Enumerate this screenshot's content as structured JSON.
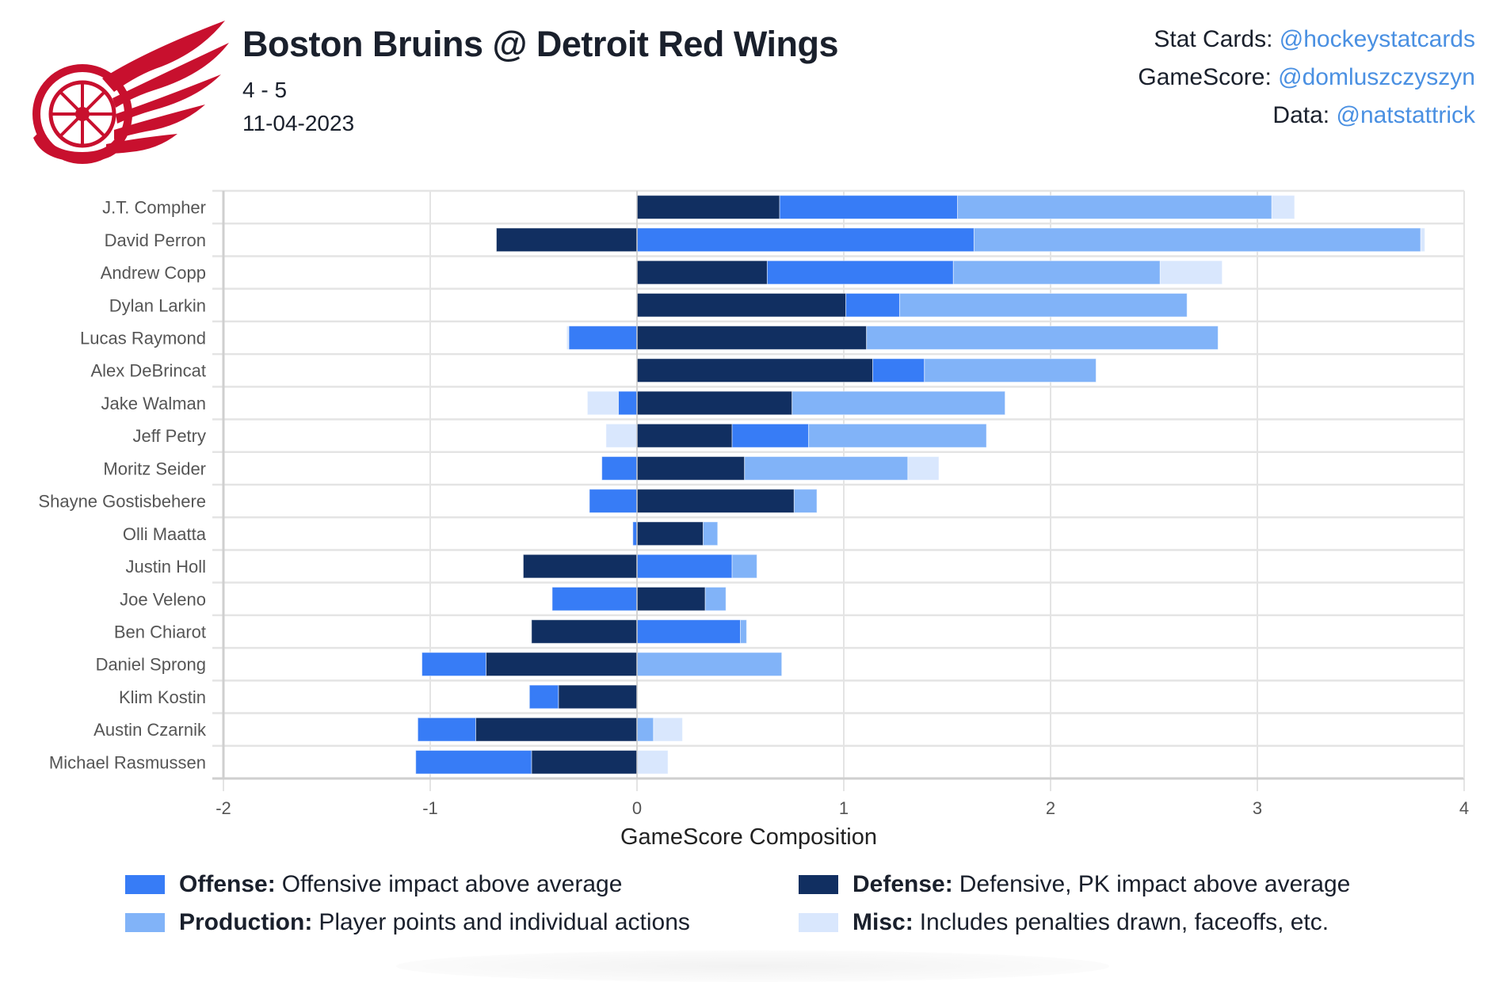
{
  "header": {
    "title": "Boston Bruins @ Detroit Red Wings",
    "score": "4 - 5",
    "date": "11-04-2023",
    "logo_icon": "red-wings-winged-wheel-logo",
    "logo_color": "#c8102e"
  },
  "credits": [
    {
      "label": "Stat Cards:",
      "handle": "@hockeystatcards"
    },
    {
      "label": "GameScore:",
      "handle": "@domluszczyszyn"
    },
    {
      "label": "Data:",
      "handle": "@natstattrick"
    }
  ],
  "legend": [
    {
      "key": "offense",
      "name": "Offense:",
      "desc": "Offensive impact above average",
      "color": "#377cf6"
    },
    {
      "key": "defense",
      "name": "Defense:",
      "desc": "Defensive, PK impact above average",
      "color": "#112f61"
    },
    {
      "key": "production",
      "name": "Production:",
      "desc": "Player points and individual actions",
      "color": "#81b3f8"
    },
    {
      "key": "misc",
      "name": "Misc:",
      "desc": "Includes penalties drawn, faceoffs, etc.",
      "color": "#d9e7fd"
    }
  ],
  "chart_data": {
    "type": "bar",
    "orientation": "horizontal",
    "stacked": true,
    "title": "",
    "xlabel": "GameScore Composition",
    "ylabel": "",
    "xlim": [
      -2,
      4
    ],
    "xticks": [
      "-2",
      "-1",
      "0",
      "1",
      "2",
      "3",
      "4"
    ],
    "grid": true,
    "legend_position": "bottom",
    "categories": [
      "J.T. Compher",
      "David Perron",
      "Andrew Copp",
      "Dylan Larkin",
      "Lucas Raymond",
      "Alex DeBrincat",
      "Jake Walman",
      "Jeff Petry",
      "Moritz Seider",
      "Shayne Gostisbehere",
      "Olli Maatta",
      "Justin Holl",
      "Joe Veleno",
      "Ben Chiarot",
      "Daniel Sprong",
      "Klim Kostin",
      "Austin Czarnik",
      "Michael Rasmussen"
    ],
    "series": [
      {
        "name": "Defense",
        "color": "#112f61",
        "values": [
          0.69,
          -0.68,
          0.63,
          1.01,
          1.11,
          1.14,
          0.75,
          0.46,
          0.52,
          0.76,
          0.32,
          -0.55,
          0.33,
          -0.51,
          -0.73,
          -0.38,
          -0.78,
          -0.51
        ]
      },
      {
        "name": "Offense",
        "color": "#377cf6",
        "values": [
          0.86,
          1.63,
          0.9,
          0.26,
          -0.33,
          0.25,
          -0.09,
          0.37,
          -0.17,
          -0.23,
          -0.02,
          0.46,
          -0.41,
          0.5,
          -0.31,
          -0.14,
          -0.28,
          -0.56
        ]
      },
      {
        "name": "Production",
        "color": "#81b3f8",
        "values": [
          1.52,
          2.16,
          1.0,
          1.39,
          1.7,
          0.83,
          1.03,
          0.86,
          0.79,
          0.11,
          0.07,
          0.12,
          0.1,
          0.03,
          0.7,
          0.0,
          0.08,
          0.0
        ]
      },
      {
        "name": "Misc",
        "color": "#d9e7fd",
        "values": [
          0.11,
          0.02,
          0.3,
          0.0,
          -0.01,
          0.0,
          -0.15,
          -0.15,
          0.15,
          0.0,
          0.0,
          0.0,
          0.0,
          0.0,
          0.0,
          0.0,
          0.14,
          0.15
        ]
      }
    ]
  }
}
